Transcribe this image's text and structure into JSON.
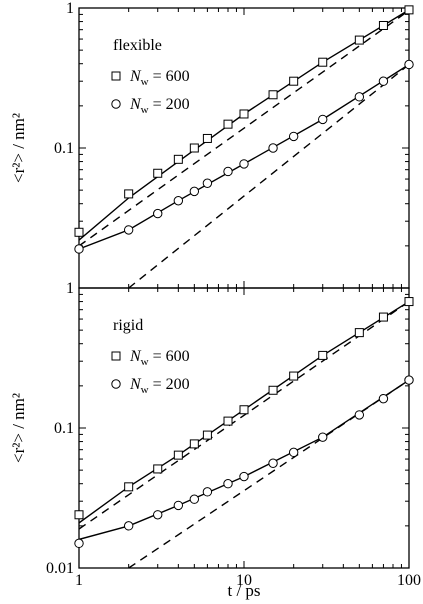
{
  "chart_data": [
    {
      "type": "line",
      "xscale": "log",
      "yscale": "log",
      "xlim": [
        1,
        100
      ],
      "ylim": [
        0.01,
        1
      ],
      "x_ticks": [
        "1",
        "10",
        "100"
      ],
      "y_ticks": [
        "1",
        "0.1"
      ],
      "ylabel": "<r²> / nm²",
      "xlabel": "",
      "annotation": "flexible",
      "legend_position": "upper-left",
      "series": [
        {
          "name": "N_w = 600",
          "legend_main": "N",
          "legend_sub": "w",
          "legend_tail": " = 600",
          "marker": "square",
          "x": [
            1,
            2,
            3,
            4,
            5,
            6,
            8,
            10,
            15,
            20,
            30,
            50,
            70,
            100
          ],
          "y": [
            0.025,
            0.047,
            0.066,
            0.083,
            0.1,
            0.117,
            0.148,
            0.175,
            0.24,
            0.3,
            0.41,
            0.59,
            0.75,
            0.97
          ]
        },
        {
          "name": "N_w = 200",
          "legend_main": "N",
          "legend_sub": "w",
          "legend_tail": " = 200",
          "marker": "circle",
          "x": [
            1,
            2,
            3,
            4,
            5,
            6,
            8,
            10,
            15,
            20,
            30,
            50,
            70,
            100
          ],
          "y": [
            0.019,
            0.026,
            0.034,
            0.042,
            0.049,
            0.056,
            0.068,
            0.077,
            0.1,
            0.121,
            0.16,
            0.232,
            0.3,
            0.395
          ]
        }
      ],
      "fit_lines": [
        {
          "style": "solid",
          "x": [
            1,
            2,
            4,
            10,
            30,
            100
          ],
          "y": [
            0.022,
            0.044,
            0.08,
            0.175,
            0.41,
            0.97
          ]
        },
        {
          "style": "dashed",
          "x": [
            1,
            100
          ],
          "y": [
            0.02,
            0.96
          ]
        },
        {
          "style": "solid",
          "x": [
            1,
            2,
            4,
            10,
            30,
            100
          ],
          "y": [
            0.019,
            0.026,
            0.042,
            0.077,
            0.16,
            0.395
          ]
        },
        {
          "style": "dashed",
          "x": [
            2,
            100
          ],
          "y": [
            0.01,
            0.395
          ]
        }
      ]
    },
    {
      "type": "line",
      "xscale": "log",
      "yscale": "log",
      "xlim": [
        1,
        100
      ],
      "ylim": [
        0.01,
        1
      ],
      "x_ticks": [
        "1",
        "10",
        "100"
      ],
      "y_ticks": [
        "1",
        "0.1",
        "0.01"
      ],
      "ylabel": "<r²> / nm²",
      "xlabel": "t / ps",
      "annotation": "rigid",
      "legend_position": "upper-left",
      "series": [
        {
          "name": "N_w = 600",
          "legend_main": "N",
          "legend_sub": "w",
          "legend_tail": " = 600",
          "marker": "square",
          "x": [
            1,
            2,
            3,
            4,
            5,
            6,
            8,
            10,
            15,
            20,
            30,
            50,
            70,
            100
          ],
          "y": [
            0.024,
            0.038,
            0.051,
            0.064,
            0.077,
            0.089,
            0.112,
            0.135,
            0.186,
            0.235,
            0.33,
            0.48,
            0.62,
            0.8
          ]
        },
        {
          "name": "N_w = 200",
          "legend_main": "N",
          "legend_sub": "w",
          "legend_tail": " = 200",
          "marker": "circle",
          "x": [
            1,
            2,
            3,
            4,
            5,
            6,
            8,
            10,
            15,
            20,
            30,
            50,
            70,
            100
          ],
          "y": [
            0.015,
            0.02,
            0.024,
            0.028,
            0.031,
            0.035,
            0.04,
            0.045,
            0.056,
            0.067,
            0.086,
            0.124,
            0.162,
            0.22
          ]
        }
      ],
      "fit_lines": [
        {
          "style": "solid",
          "x": [
            1,
            2,
            4,
            10,
            30,
            100
          ],
          "y": [
            0.021,
            0.038,
            0.064,
            0.135,
            0.33,
            0.8
          ]
        },
        {
          "style": "dashed",
          "x": [
            1,
            100
          ],
          "y": [
            0.019,
            0.8
          ]
        },
        {
          "style": "solid",
          "x": [
            1,
            2,
            4,
            10,
            30,
            100
          ],
          "y": [
            0.016,
            0.02,
            0.028,
            0.045,
            0.086,
            0.22
          ]
        },
        {
          "style": "dashed",
          "x": [
            2,
            100
          ],
          "y": [
            0.01,
            0.22
          ]
        }
      ]
    }
  ]
}
